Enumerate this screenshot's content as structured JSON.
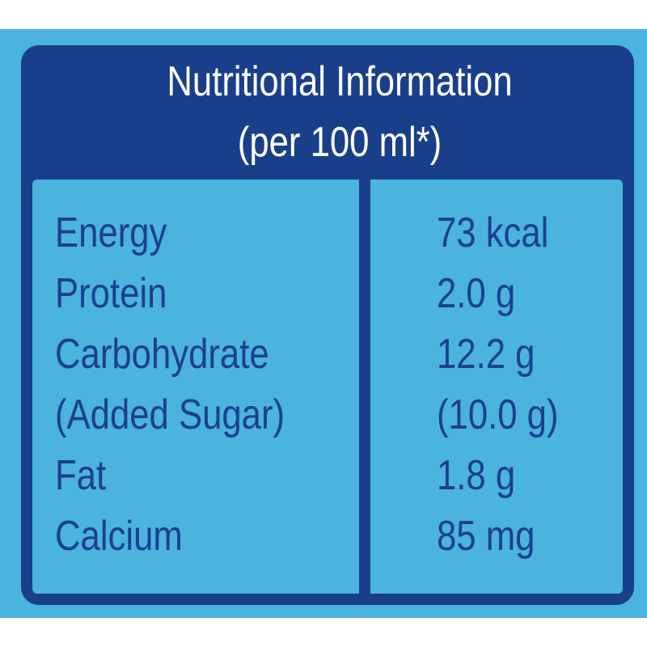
{
  "header": {
    "title": "Nutritional Information",
    "subtitle": "(per 100 ml*)"
  },
  "table": {
    "rows": [
      [
        "Energy",
        "73 kcal"
      ],
      [
        "Protein",
        "2.0 g"
      ],
      [
        "Carbohydrate",
        "12.2 g"
      ],
      [
        "(Added Sugar)",
        "(10.0 g)"
      ],
      [
        "Fat",
        "1.8 g"
      ],
      [
        "Calcium",
        "85 mg"
      ]
    ]
  }
}
